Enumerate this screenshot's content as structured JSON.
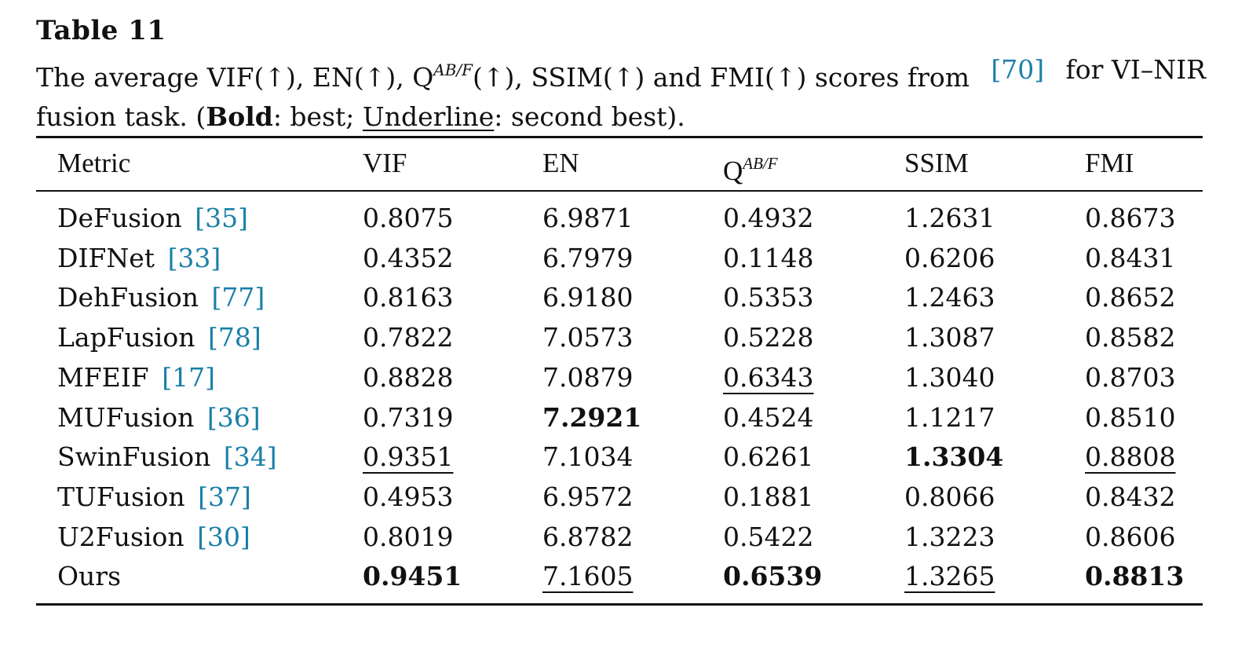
{
  "caption": {
    "label": "Table 11",
    "line1_a": "The average VIF(↑), EN(↑), Q",
    "line1_sup": "AB/F",
    "line1_b": "(↑), SSIM(↑) and FMI(↑) scores from",
    "line1_ref": "[70]",
    "line1_c": "for VI–NIR",
    "line2_a": "fusion task. (",
    "line2_bold": "Bold",
    "line2_b": ": best;",
    "line2_underline": "Underline",
    "line2_c": ": second best)."
  },
  "table": {
    "headers": [
      "Metric",
      "VIF",
      "EN",
      "Q",
      "SSIM",
      "FMI"
    ],
    "header_q_sup": "AB/F",
    "rows": [
      {
        "method": "DeFusion",
        "ref": "[35]",
        "values": [
          "0.8075",
          "6.9871",
          "0.4932",
          "1.2631",
          "0.8673"
        ],
        "bold": [],
        "underline": []
      },
      {
        "method": "DIFNet",
        "ref": "[33]",
        "values": [
          "0.4352",
          "6.7979",
          "0.1148",
          "0.6206",
          "0.8431"
        ],
        "bold": [],
        "underline": []
      },
      {
        "method": "DehFusion",
        "ref": "[77]",
        "values": [
          "0.8163",
          "6.9180",
          "0.5353",
          "1.2463",
          "0.8652"
        ],
        "bold": [],
        "underline": []
      },
      {
        "method": "LapFusion",
        "ref": "[78]",
        "values": [
          "0.7822",
          "7.0573",
          "0.5228",
          "1.3087",
          "0.8582"
        ],
        "bold": [],
        "underline": []
      },
      {
        "method": "MFEIF",
        "ref": "[17]",
        "values": [
          "0.8828",
          "7.0879",
          "0.6343",
          "1.3040",
          "0.8703"
        ],
        "bold": [],
        "underline": [
          2
        ]
      },
      {
        "method": "MUFusion",
        "ref": "[36]",
        "values": [
          "0.7319",
          "7.2921",
          "0.4524",
          "1.1217",
          "0.8510"
        ],
        "bold": [
          1
        ],
        "underline": []
      },
      {
        "method": "SwinFusion",
        "ref": "[34]",
        "values": [
          "0.9351",
          "7.1034",
          "0.6261",
          "1.3304",
          "0.8808"
        ],
        "bold": [
          3
        ],
        "underline": [
          0,
          4
        ]
      },
      {
        "method": "TUFusion",
        "ref": "[37]",
        "values": [
          "0.4953",
          "6.9572",
          "0.1881",
          "0.8066",
          "0.8432"
        ],
        "bold": [],
        "underline": []
      },
      {
        "method": "U2Fusion",
        "ref": "[30]",
        "values": [
          "0.8019",
          "6.8782",
          "0.5422",
          "1.3223",
          "0.8606"
        ],
        "bold": [],
        "underline": []
      },
      {
        "method": "Ours",
        "ref": "",
        "values": [
          "0.9451",
          "7.1605",
          "0.6539",
          "1.3265",
          "0.8813"
        ],
        "bold": [
          0,
          2,
          4
        ],
        "underline": [
          1,
          3
        ]
      }
    ]
  },
  "colors": {
    "text": "#111111",
    "reference_link": "#1a7fa8"
  }
}
